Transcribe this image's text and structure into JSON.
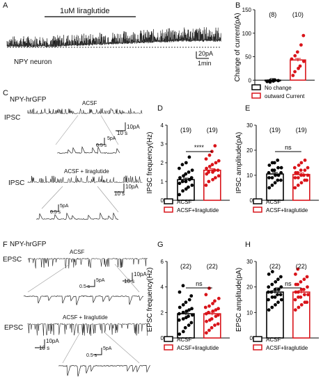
{
  "panels": {
    "A": {
      "letter": "A",
      "drug_label": "1uM liraglutide",
      "cell_label": "NPY neuron",
      "scale_current": "20pA",
      "scale_time": "1min"
    },
    "B": {
      "letter": "B",
      "ylabel": "Change of current(pA)",
      "n_left": "(8)",
      "n_right": "(10)",
      "legend": [
        "No change",
        "outward Current"
      ]
    },
    "C": {
      "letter": "C",
      "cell": "NPY-hrGFP",
      "row1_label": "IPSC",
      "row1_cond": "ACSF",
      "row2_label": "IPSC",
      "row2_cond": "ACSF + liraglutide",
      "scale1_i": "10pA",
      "scale1_t": "10 s",
      "inset1_i": "5pA",
      "inset1_t": "0.5 s",
      "scale2_i": "10pA",
      "scale2_t": "10 s",
      "inset2_i": "5pA",
      "inset2_t": "0.5 s"
    },
    "D": {
      "letter": "D",
      "ylabel": "IPSC frequency(Hz)",
      "n_left": "(19)",
      "n_right": "(19)",
      "sig": "****",
      "legend": [
        "ACSF",
        "ACSF+liraglutide"
      ]
    },
    "E": {
      "letter": "E",
      "ylabel": "IPSC amplitude(pA)",
      "n_left": "(19)",
      "n_right": "(19)",
      "sig": "ns",
      "legend": [
        "ACSF",
        "ACSF+liraglutide"
      ]
    },
    "F": {
      "letter": "F",
      "cell": "NPY-hrGFP",
      "row1_label": "EPSC",
      "row1_cond": "ACSF",
      "row2_label": "EPSC",
      "row2_cond": "ACSF + liraglutide",
      "scale1_i": "10pA",
      "scale1_t": "10 s",
      "inset1_i": "5pA",
      "inset1_t": "0.5 s",
      "scale2_i": "10pA",
      "scale2_t": "10 s",
      "inset2_i": "5pA",
      "inset2_t": "0.5 s"
    },
    "G": {
      "letter": "G",
      "ylabel": "EPSC frequency(Hz)",
      "n_left": "(22)",
      "n_right": "(22)",
      "sig": "ns",
      "legend": [
        "ACSF",
        "ACSF+liraglutide"
      ]
    },
    "H": {
      "letter": "H",
      "ylabel": "EPSC amplitude(pA)",
      "n_left": "(22)",
      "n_right": "(22)",
      "sig": "ns",
      "legend": [
        "ACSF",
        "ACSF+liraglutide"
      ]
    }
  },
  "colors": {
    "control": "#000000",
    "treatment": "#d9141a"
  },
  "chart_data": [
    {
      "panel": "B",
      "type": "bar",
      "ylabel": "Change of current(pA)",
      "ylim": [
        -10,
        150
      ],
      "yticks": [
        0,
        50,
        100,
        150
      ],
      "series": [
        {
          "name": "No change",
          "mean": 0,
          "points": [
            -3,
            -1,
            -2,
            0,
            -1,
            -2,
            -4,
            -1
          ]
        },
        {
          "name": "outward Current",
          "mean": 43,
          "points": [
            10,
            18,
            25,
            30,
            40,
            45,
            52,
            60,
            75,
            95
          ]
        }
      ]
    },
    {
      "panel": "D",
      "type": "bar",
      "ylabel": "IPSC frequency(Hz)",
      "ylim": [
        0,
        4
      ],
      "yticks": [
        0,
        1,
        2,
        3,
        4
      ],
      "series": [
        {
          "name": "ACSF",
          "mean": 1.1,
          "points": [
            0.3,
            0.5,
            0.6,
            0.7,
            0.8,
            0.9,
            1.0,
            1.0,
            1.1,
            1.2,
            1.2,
            1.3,
            1.4,
            1.5,
            1.6,
            1.7,
            1.9,
            2.0,
            2.3
          ]
        },
        {
          "name": "ACSF+liraglutide",
          "mean": 1.6,
          "points": [
            0.8,
            1.0,
            1.1,
            1.2,
            1.3,
            1.4,
            1.5,
            1.5,
            1.6,
            1.6,
            1.7,
            1.8,
            1.9,
            2.0,
            2.1,
            2.2,
            2.4,
            2.6,
            2.9
          ]
        }
      ]
    },
    {
      "panel": "E",
      "type": "bar",
      "ylabel": "IPSC amplitude(pA)",
      "ylim": [
        0,
        30
      ],
      "yticks": [
        0,
        10,
        20,
        30
      ],
      "series": [
        {
          "name": "ACSF",
          "mean": 10.5,
          "points": [
            5,
            6,
            7,
            8,
            8,
            9,
            9,
            10,
            10,
            11,
            11,
            12,
            12,
            13,
            13,
            14,
            15,
            15,
            16
          ]
        },
        {
          "name": "ACSF+liraglutide",
          "mean": 10.3,
          "points": [
            5,
            6,
            7,
            8,
            8,
            9,
            9,
            10,
            10,
            10,
            11,
            11,
            12,
            12,
            13,
            13,
            14,
            15,
            16
          ]
        }
      ]
    },
    {
      "panel": "G",
      "type": "bar",
      "ylabel": "EPSC frequency(Hz)",
      "ylim": [
        0,
        6
      ],
      "yticks": [
        0,
        2,
        4,
        6
      ],
      "series": [
        {
          "name": "ACSF",
          "mean": 1.9,
          "points": [
            0.3,
            0.5,
            0.8,
            1.0,
            1.2,
            1.4,
            1.5,
            1.6,
            1.7,
            1.8,
            1.9,
            2.0,
            2.1,
            2.2,
            2.3,
            2.4,
            2.6,
            2.8,
            3.0,
            3.3,
            3.6,
            4.1
          ]
        },
        {
          "name": "ACSF+liraglutide",
          "mean": 1.9,
          "points": [
            0.4,
            0.6,
            0.8,
            1.0,
            1.1,
            1.3,
            1.4,
            1.5,
            1.7,
            1.8,
            1.9,
            2.0,
            2.1,
            2.2,
            2.3,
            2.4,
            2.5,
            2.7,
            2.9,
            3.1,
            3.4,
            3.9
          ]
        }
      ]
    },
    {
      "panel": "H",
      "type": "bar",
      "ylabel": "EPSC amplitude(pA)",
      "ylim": [
        0,
        30
      ],
      "yticks": [
        0,
        10,
        20,
        30
      ],
      "series": [
        {
          "name": "ACSF",
          "mean": 18,
          "points": [
            11,
            12,
            13,
            14,
            15,
            15,
            16,
            16,
            17,
            17,
            18,
            18,
            19,
            19,
            20,
            20,
            21,
            22,
            23,
            24,
            25,
            26
          ]
        },
        {
          "name": "ACSF+liraglutide",
          "mean": 18,
          "points": [
            11,
            12,
            13,
            14,
            14,
            15,
            16,
            16,
            17,
            17,
            18,
            18,
            19,
            19,
            20,
            21,
            21,
            22,
            23,
            24,
            25,
            27
          ]
        }
      ]
    }
  ]
}
